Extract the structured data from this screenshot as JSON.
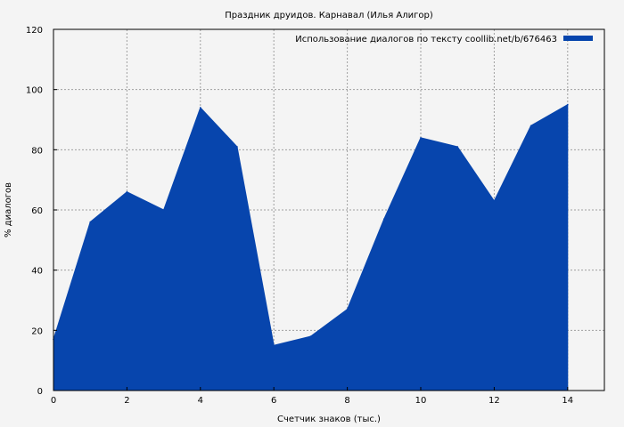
{
  "chart_data": {
    "type": "area",
    "title": "Праздник друидов. Карнавал (Илья Алигор)",
    "xlabel": "Счетчик знаков (тыс.)",
    "ylabel": "% диалогов",
    "xlim": [
      0,
      15
    ],
    "ylim": [
      0,
      120
    ],
    "xticks": [
      0,
      2,
      4,
      6,
      8,
      10,
      12,
      14
    ],
    "yticks": [
      0,
      20,
      40,
      60,
      80,
      100,
      120
    ],
    "grid": true,
    "legend_position": "top-right",
    "series": [
      {
        "name": "Использование диалогов по тексту coollib.net/b/676463",
        "color": "#0745ad",
        "x": [
          0,
          1,
          2,
          3,
          4,
          5,
          6,
          7,
          8,
          9,
          10,
          11,
          12,
          13,
          14
        ],
        "y": [
          17,
          56,
          66,
          60,
          94,
          81,
          15,
          18,
          27,
          57,
          84,
          81,
          63,
          88,
          95
        ]
      }
    ]
  }
}
